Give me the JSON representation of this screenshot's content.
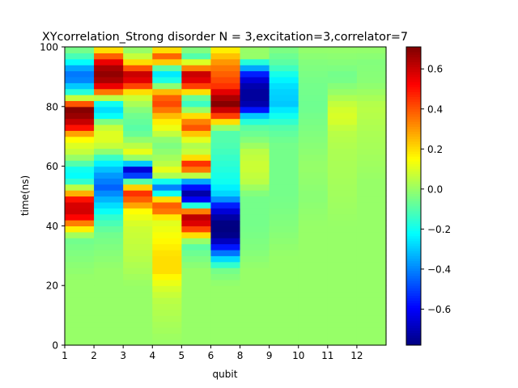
{
  "chart_data": {
    "type": "heatmap",
    "title": "XYcorrelation_Strong disorder  N =  3,excitation=3,correlator=7",
    "xlabel": "qubit",
    "ylabel": "time(ns)",
    "x_tick_labels": [
      "1",
      "2",
      "3",
      "4",
      "5",
      "6",
      "8",
      "9",
      "10",
      "11",
      "12"
    ],
    "column_count": 11,
    "ylim": [
      0,
      100
    ],
    "y_ticks": [
      0,
      20,
      40,
      60,
      80,
      100
    ],
    "color_range": [
      -0.78,
      0.71
    ],
    "colorbar_ticks": [
      -0.6,
      -0.4,
      -0.2,
      0.0,
      0.2,
      0.4,
      0.6
    ],
    "colormap": "jet",
    "grid": false,
    "row_step_ns": 2,
    "columns": [
      {
        "column": 1,
        "profile": [
          [
            0,
            0.0
          ],
          [
            22,
            0.0
          ],
          [
            30,
            -0.03
          ],
          [
            36,
            -0.06
          ],
          [
            40,
            0.25
          ],
          [
            43,
            0.52
          ],
          [
            46,
            0.62
          ],
          [
            49,
            0.5
          ],
          [
            52,
            0.15
          ],
          [
            55,
            -0.15
          ],
          [
            58,
            -0.25
          ],
          [
            61,
            -0.1
          ],
          [
            64,
            0.05
          ],
          [
            67,
            0.1
          ],
          [
            70,
            0.18
          ],
          [
            73,
            0.5
          ],
          [
            76,
            0.66
          ],
          [
            79,
            0.7
          ],
          [
            81,
            0.4
          ],
          [
            84,
            -0.1
          ],
          [
            87,
            -0.3
          ],
          [
            90,
            -0.45
          ],
          [
            93,
            -0.35
          ],
          [
            96,
            -0.15
          ],
          [
            99,
            -0.05
          ]
        ]
      },
      {
        "column": 2,
        "profile": [
          [
            0,
            0.0
          ],
          [
            25,
            0.0
          ],
          [
            32,
            -0.03
          ],
          [
            38,
            -0.06
          ],
          [
            43,
            -0.15
          ],
          [
            48,
            -0.3
          ],
          [
            53,
            -0.45
          ],
          [
            58,
            -0.35
          ],
          [
            62,
            -0.2
          ],
          [
            66,
            0.05
          ],
          [
            70,
            0.12
          ],
          [
            74,
            0.05
          ],
          [
            78,
            -0.3
          ],
          [
            81,
            -0.2
          ],
          [
            83,
            0.05
          ],
          [
            86,
            0.5
          ],
          [
            89,
            0.65
          ],
          [
            92,
            0.7
          ],
          [
            95,
            0.55
          ],
          [
            98,
            0.3
          ],
          [
            100,
            0.1
          ]
        ]
      },
      {
        "column": 3,
        "profile": [
          [
            0,
            0.0
          ],
          [
            20,
            0.0
          ],
          [
            30,
            0.05
          ],
          [
            40,
            0.08
          ],
          [
            45,
            0.15
          ],
          [
            48,
            0.35
          ],
          [
            51,
            0.45
          ],
          [
            54,
            0.1
          ],
          [
            57,
            -0.5
          ],
          [
            59,
            -0.65
          ],
          [
            61,
            -0.3
          ],
          [
            64,
            0.15
          ],
          [
            67,
            0.05
          ],
          [
            72,
            -0.1
          ],
          [
            78,
            -0.05
          ],
          [
            84,
            0.1
          ],
          [
            86,
            0.3
          ],
          [
            88,
            0.55
          ],
          [
            91,
            0.6
          ],
          [
            94,
            0.3
          ],
          [
            96,
            0.1
          ],
          [
            99,
            0.0
          ]
        ]
      },
      {
        "column": 4,
        "profile": [
          [
            0,
            0.0
          ],
          [
            15,
            0.05
          ],
          [
            20,
            0.1
          ],
          [
            25,
            0.2
          ],
          [
            30,
            0.2
          ],
          [
            36,
            0.15
          ],
          [
            42,
            0.1
          ],
          [
            45,
            0.35
          ],
          [
            48,
            0.4
          ],
          [
            51,
            -0.2
          ],
          [
            53,
            -0.4
          ],
          [
            55,
            -0.2
          ],
          [
            58,
            0.15
          ],
          [
            61,
            0.05
          ],
          [
            64,
            0.0
          ],
          [
            68,
            -0.05
          ],
          [
            72,
            0.1
          ],
          [
            76,
            0.2
          ],
          [
            79,
            0.35
          ],
          [
            82,
            0.45
          ],
          [
            85,
            0.25
          ],
          [
            88,
            -0.15
          ],
          [
            91,
            -0.25
          ],
          [
            94,
            0.0
          ],
          [
            96,
            0.45
          ],
          [
            98,
            0.3
          ],
          [
            100,
            0.1
          ]
        ]
      },
      {
        "column": 5,
        "profile": [
          [
            0,
            0.0
          ],
          [
            25,
            0.0
          ],
          [
            30,
            -0.05
          ],
          [
            34,
            -0.1
          ],
          [
            38,
            0.3
          ],
          [
            40,
            0.55
          ],
          [
            43,
            0.62
          ],
          [
            46,
            0.2
          ],
          [
            48,
            -0.55
          ],
          [
            51,
            -0.72
          ],
          [
            54,
            -0.5
          ],
          [
            56,
            -0.2
          ],
          [
            58,
            0.3
          ],
          [
            61,
            0.45
          ],
          [
            63,
            0.2
          ],
          [
            66,
            0.0
          ],
          [
            70,
            0.15
          ],
          [
            73,
            0.4
          ],
          [
            76,
            0.3
          ],
          [
            79,
            0.0
          ],
          [
            82,
            -0.2
          ],
          [
            85,
            0.2
          ],
          [
            88,
            0.55
          ],
          [
            91,
            0.6
          ],
          [
            94,
            0.2
          ],
          [
            97,
            -0.1
          ],
          [
            100,
            0.0
          ]
        ]
      },
      {
        "column": 6,
        "profile": [
          [
            0,
            0.0
          ],
          [
            20,
            0.0
          ],
          [
            25,
            -0.05
          ],
          [
            28,
            -0.2
          ],
          [
            32,
            -0.5
          ],
          [
            36,
            -0.75
          ],
          [
            40,
            -0.8
          ],
          [
            44,
            -0.7
          ],
          [
            47,
            -0.55
          ],
          [
            50,
            -0.3
          ],
          [
            55,
            -0.2
          ],
          [
            62,
            -0.15
          ],
          [
            68,
            -0.1
          ],
          [
            72,
            -0.1
          ],
          [
            75,
            0.2
          ],
          [
            78,
            0.55
          ],
          [
            81,
            0.7
          ],
          [
            84,
            0.62
          ],
          [
            87,
            0.45
          ],
          [
            90,
            0.4
          ],
          [
            93,
            0.35
          ],
          [
            96,
            0.28
          ],
          [
            98,
            0.2
          ],
          [
            100,
            0.15
          ]
        ]
      },
      {
        "column": 8,
        "profile": [
          [
            0,
            0.0
          ],
          [
            25,
            0.0
          ],
          [
            32,
            -0.03
          ],
          [
            40,
            -0.05
          ],
          [
            50,
            -0.05
          ],
          [
            55,
            0.05
          ],
          [
            60,
            0.08
          ],
          [
            65,
            0.05
          ],
          [
            70,
            -0.05
          ],
          [
            74,
            -0.1
          ],
          [
            77,
            -0.3
          ],
          [
            80,
            -0.7
          ],
          [
            84,
            -0.75
          ],
          [
            88,
            -0.7
          ],
          [
            91,
            -0.55
          ],
          [
            94,
            -0.25
          ],
          [
            97,
            0.0
          ],
          [
            100,
            0.0
          ]
        ]
      },
      {
        "column": 9,
        "profile": [
          [
            0,
            0.0
          ],
          [
            30,
            0.0
          ],
          [
            40,
            -0.03
          ],
          [
            50,
            -0.05
          ],
          [
            60,
            -0.05
          ],
          [
            68,
            -0.05
          ],
          [
            73,
            -0.1
          ],
          [
            77,
            -0.2
          ],
          [
            81,
            -0.3
          ],
          [
            86,
            -0.28
          ],
          [
            90,
            -0.22
          ],
          [
            94,
            -0.1
          ],
          [
            98,
            -0.05
          ],
          [
            100,
            -0.03
          ]
        ]
      },
      {
        "column": 10,
        "profile": [
          [
            0,
            0.0
          ],
          [
            40,
            0.0
          ],
          [
            50,
            -0.02
          ],
          [
            60,
            0.0
          ],
          [
            70,
            -0.03
          ],
          [
            80,
            -0.06
          ],
          [
            88,
            -0.05
          ],
          [
            95,
            -0.03
          ],
          [
            100,
            0.0
          ]
        ]
      },
      {
        "column": 11,
        "profile": [
          [
            0,
            0.0
          ],
          [
            40,
            0.0
          ],
          [
            55,
            0.02
          ],
          [
            65,
            0.03
          ],
          [
            72,
            0.05
          ],
          [
            76,
            0.1
          ],
          [
            80,
            0.08
          ],
          [
            85,
            0.0
          ],
          [
            90,
            -0.06
          ],
          [
            94,
            -0.03
          ],
          [
            100,
            0.0
          ]
        ]
      },
      {
        "column": 12,
        "profile": [
          [
            0,
            0.0
          ],
          [
            40,
            0.0
          ],
          [
            55,
            0.0
          ],
          [
            65,
            0.02
          ],
          [
            72,
            0.03
          ],
          [
            80,
            0.05
          ],
          [
            88,
            -0.02
          ],
          [
            95,
            -0.03
          ],
          [
            100,
            0.0
          ]
        ]
      }
    ]
  }
}
